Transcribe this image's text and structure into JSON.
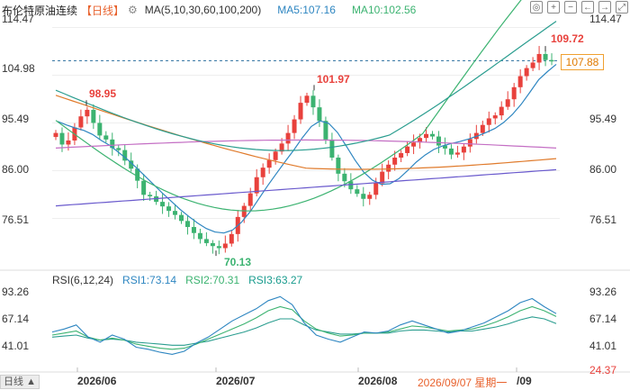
{
  "header": {
    "title": "布伦特原油连续",
    "period": "【日线】",
    "ma_label": "MA(5,10,30,60,100,200)",
    "ma5": "MA5:107.16",
    "ma10": "MA10:102.56"
  },
  "toolbar": {
    "icons": [
      "camera-icon",
      "plus-icon",
      "minus-icon",
      "left-arrow-icon",
      "right-arrow-icon",
      "fullscreen-icon"
    ],
    "glyphs": [
      "◎",
      "+",
      "−",
      "←",
      "→",
      "⤢"
    ]
  },
  "price_axis": {
    "ticks": [
      "114.47",
      "104.98",
      "95.49",
      "86.00",
      "76.51"
    ]
  },
  "rsi_axis": {
    "ticks": [
      "93.26",
      "67.14",
      "41.01"
    ],
    "left_bottom": "",
    "right_bottom": "24.37"
  },
  "current_price": "107.88",
  "annotations": {
    "high_1": "98.95",
    "low": "70.13",
    "high_2": "101.97",
    "high_3": "109.72"
  },
  "rsi_header": {
    "label": "RSI(6,12,24)",
    "rsi1": "RSI1:73.14",
    "rsi2": "RSI2:70.31",
    "rsi3": "RSI3:63.27"
  },
  "dates": [
    "2026/06",
    "2026/07",
    "2026/08",
    "/09"
  ],
  "cursor_date": "2026/09/07 星期一",
  "zoom_label": "日线 ▲",
  "colors": {
    "up": "#e8413c",
    "down": "#3cb371",
    "ma5": "#2e86c1",
    "ma10": "#3cb371",
    "ma30": "#2a9d8f",
    "ma60": "#e07b2c",
    "ma100": "#c46fc4",
    "ma200": "#6a5acd"
  },
  "chart_data": {
    "type": "candlestick",
    "y_range": [
      70.13,
      109.72
    ],
    "candles_close": [
      93.5,
      91.2,
      92.0,
      94.6,
      96.8,
      98.1,
      95.5,
      93.0,
      92.2,
      90.5,
      90.1,
      88.0,
      86.4,
      84.0,
      81.2,
      80.9,
      79.8,
      78.9,
      78.0,
      77.2,
      76.0,
      74.8,
      73.6,
      72.4,
      71.6,
      71.0,
      70.6,
      71.5,
      73.4,
      76.8,
      79.0,
      81.5,
      84.7,
      86.6,
      88.1,
      89.8,
      91.4,
      93.5,
      96.2,
      99.5,
      100.9,
      98.6,
      95.9,
      92.2,
      88.6,
      85.4,
      83.9,
      82.3,
      81.4,
      80.4,
      81.2,
      83.5,
      85.8,
      87.2,
      88.6,
      89.5,
      90.8,
      91.6,
      92.5,
      93.3,
      92.8,
      91.0,
      90.4,
      89.2,
      89.6,
      90.8,
      92.3,
      93.5,
      95.1,
      96.4,
      97.0,
      98.7,
      100.2,
      102.6,
      104.8,
      106.4,
      107.5,
      109.2,
      108.0,
      107.88
    ],
    "ma5": [
      95.8,
      95.1,
      94.5,
      94.0,
      93.2,
      92.0,
      91.0,
      89.6,
      88.2,
      86.6,
      84.9,
      83.2,
      81.5,
      79.9,
      78.3,
      76.9,
      75.6,
      74.5,
      73.8,
      73.6,
      74.2,
      75.7,
      77.8,
      80.4,
      83.0,
      85.4,
      87.8,
      90.1,
      92.6,
      94.8,
      95.9,
      95.4,
      93.6,
      90.9,
      88.1,
      85.7,
      84.1,
      83.3,
      83.4,
      84.4,
      86.0,
      87.7,
      89.1,
      90.2,
      90.9,
      91.4,
      91.8,
      92.3,
      92.9,
      93.6,
      94.4,
      95.6,
      97.2,
      99.2,
      101.6,
      104.1,
      105.7,
      107.16
    ],
    "rsi1": [
      55,
      58,
      62,
      50,
      45,
      52,
      48,
      40,
      38,
      35,
      33,
      36,
      44,
      50,
      58,
      66,
      72,
      78,
      86,
      90,
      82,
      64,
      52,
      48,
      45,
      50,
      55,
      54,
      56,
      62,
      66,
      62,
      58,
      54,
      56,
      60,
      64,
      70,
      76,
      84,
      88,
      80,
      73.14
    ],
    "rsi2": [
      52,
      54,
      56,
      50,
      47,
      49,
      47,
      43,
      41,
      39,
      38,
      39,
      43,
      48,
      53,
      58,
      63,
      69,
      76,
      80,
      77,
      66,
      58,
      54,
      51,
      52,
      54,
      54,
      55,
      58,
      61,
      60,
      58,
      56,
      57,
      58,
      61,
      65,
      70,
      76,
      80,
      76,
      70.31
    ],
    "rsi3": [
      50,
      51,
      52,
      49,
      47,
      48,
      47,
      45,
      44,
      43,
      42,
      42,
      44,
      46,
      49,
      52,
      55,
      59,
      64,
      68,
      68,
      62,
      57,
      55,
      53,
      53,
      54,
      54,
      54,
      56,
      57,
      57,
      56,
      55,
      56,
      56,
      58,
      60,
      63,
      67,
      70,
      68,
      63.27
    ]
  }
}
